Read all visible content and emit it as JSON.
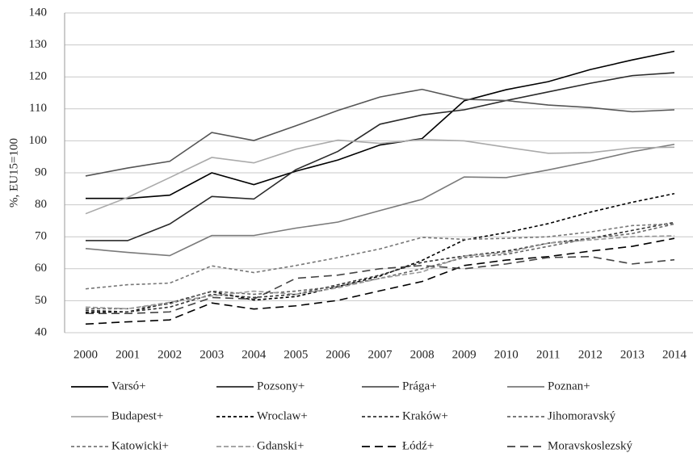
{
  "chart_data": {
    "type": "line",
    "y_label": "%, EU15=100",
    "categories": [
      "2000",
      "2001",
      "2002",
      "2003",
      "2004",
      "2005",
      "2006",
      "2007",
      "2008",
      "2009",
      "2010",
      "2011",
      "2012",
      "2013",
      "2014"
    ],
    "ylim": [
      40,
      140
    ],
    "yticks": [
      40,
      50,
      60,
      70,
      80,
      90,
      100,
      110,
      120,
      130,
      140
    ],
    "grid": true,
    "series": [
      {
        "name": "Varsó+",
        "color": "#000000",
        "dash": "solid",
        "values": [
          82,
          82,
          83,
          90,
          86.3,
          90.5,
          94,
          98.7,
          100.7,
          112.5,
          116,
          118.5,
          122.3,
          125.3,
          128
        ]
      },
      {
        "name": "Pozsony+",
        "color": "#2a2a2a",
        "dash": "solid",
        "values": [
          68.8,
          68.8,
          74,
          82.6,
          81.8,
          91,
          96.7,
          105.2,
          108.1,
          109.7,
          112.6,
          115.3,
          118,
          120.4,
          121.3
        ]
      },
      {
        "name": "Prága+",
        "color": "#555555",
        "dash": "solid",
        "values": [
          89,
          91.5,
          93.6,
          102.6,
          100.1,
          104.7,
          109.5,
          113.7,
          116.1,
          113,
          112.6,
          111.2,
          110.4,
          109.1,
          109.7
        ]
      },
      {
        "name": "Poznan+",
        "color": "#7a7a7a",
        "dash": "solid",
        "values": [
          66.3,
          65.1,
          64.1,
          70.4,
          70.4,
          72.7,
          74.6,
          78.2,
          81.7,
          88.7,
          88.5,
          90.9,
          93.6,
          96.6,
          98.9
        ]
      },
      {
        "name": "Budapest+",
        "color": "#aaaaaa",
        "dash": "solid",
        "values": [
          77.2,
          82.3,
          88.5,
          94.8,
          93.1,
          97.4,
          100.2,
          99.2,
          100.4,
          100,
          98,
          96.1,
          96.3,
          97.8,
          98
        ]
      },
      {
        "name": "Wroclaw+",
        "color": "#000000",
        "dash": "short",
        "values": [
          46.4,
          46.5,
          49.3,
          52.9,
          50.2,
          51.3,
          54.4,
          57.7,
          62.6,
          69,
          71.3,
          74.1,
          77.7,
          80.8,
          83.5
        ]
      },
      {
        "name": "Kraków+",
        "color": "#333333",
        "dash": "short",
        "values": [
          47,
          46.5,
          48,
          52,
          51,
          52,
          55,
          58,
          62,
          64,
          65.5,
          68,
          69.5,
          72,
          74.5
        ]
      },
      {
        "name": "Jihomoravský",
        "color": "#666666",
        "dash": "short",
        "values": [
          47.5,
          47.5,
          49,
          53,
          52,
          53,
          54.5,
          57,
          60,
          63.5,
          64.5,
          67,
          69.5,
          71,
          74
        ]
      },
      {
        "name": "Katowicki+",
        "color": "#777777",
        "dash": "short",
        "values": [
          53.7,
          55,
          55.5,
          60.9,
          58.8,
          61,
          63.5,
          66.2,
          69.8,
          69.2,
          69.5,
          70,
          71.5,
          73.5,
          74
        ]
      },
      {
        "name": "Gdanski+",
        "color": "#999999",
        "dash": "medium",
        "values": [
          48,
          47.5,
          49.5,
          51.5,
          53,
          52,
          54,
          57,
          59,
          64,
          65,
          68,
          69,
          70,
          70.3
        ]
      },
      {
        "name": "Łódź+",
        "color": "#000000",
        "dash": "long",
        "values": [
          42.7,
          43.4,
          44,
          49.3,
          47.4,
          48.4,
          50.1,
          53.1,
          56,
          61,
          62.7,
          63.8,
          65.5,
          67,
          69.5
        ]
      },
      {
        "name": "Moravskoslezský",
        "color": "#444444",
        "dash": "long",
        "values": [
          46,
          46,
          46.5,
          51,
          50.5,
          57,
          58,
          60,
          61,
          60,
          61.5,
          63.5,
          63.8,
          61.5,
          62.8
        ]
      }
    ]
  }
}
